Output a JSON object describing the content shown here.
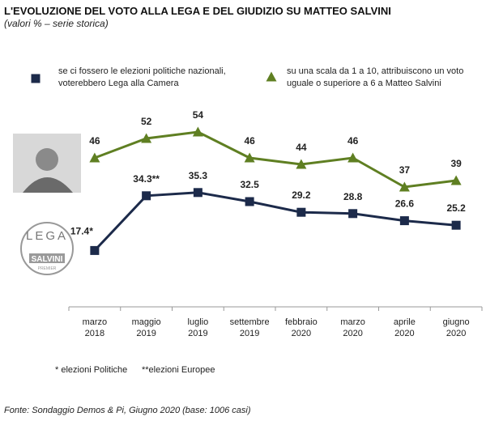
{
  "chart_data": {
    "type": "line",
    "title": "L'EVOLUZIONE DEL VOTO ALLA LEGA E DEL GIUDIZIO SU MATTEO SALVINI",
    "subtitle": "(valori % – serie storica)",
    "categories": [
      [
        "marzo",
        "2018"
      ],
      [
        "maggio",
        "2019"
      ],
      [
        "luglio",
        "2019"
      ],
      [
        "settembre",
        "2019"
      ],
      [
        "febbraio",
        "2020"
      ],
      [
        "marzo",
        "2020"
      ],
      [
        "aprile",
        "2020"
      ],
      [
        "giugno",
        "2020"
      ]
    ],
    "series": [
      {
        "name": "se ci fossero le elezioni politiche nazionali, voterebbero Lega alla Camera",
        "color": "#1c2a4a",
        "marker": "square",
        "values": [
          17.4,
          34.3,
          35.3,
          32.5,
          29.2,
          28.8,
          26.6,
          25.2
        ],
        "value_labels": [
          "17.4*",
          "34.3**",
          "35.3",
          "32.5",
          "29.2",
          "28.8",
          "26.6",
          "25.2"
        ]
      },
      {
        "name": "su una scala da 1 a 10, attribuiscono un voto uguale o superiore a 6 a Matteo Salvini",
        "color": "#5f7f22",
        "marker": "triangle",
        "values": [
          46,
          52,
          54,
          46,
          44,
          46,
          37,
          39
        ]
      }
    ],
    "ylim": [
      0,
      54
    ],
    "logo": {
      "text": "LEGA",
      "subtext": "SALVINI",
      "caption": "PREMIER"
    },
    "notes": [
      "* elezioni Politiche",
      "**elezioni Europee"
    ],
    "source": "Fonte: Sondaggio Demos & Pi, Giugno 2020 (base: 1006 casi)"
  }
}
